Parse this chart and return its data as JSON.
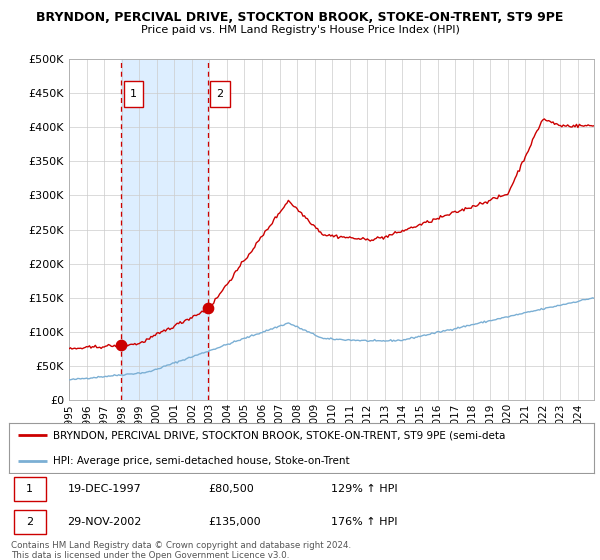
{
  "title_line1": "BRYNDON, PERCIVAL DRIVE, STOCKTON BROOK, STOKE-ON-TRENT, ST9 9PE",
  "title_line2": "Price paid vs. HM Land Registry's House Price Index (HPI)",
  "sale1_date": "19-DEC-1997",
  "sale1_price": 80500,
  "sale1_hpi_pct": "129% ↑ HPI",
  "sale2_date": "29-NOV-2002",
  "sale2_price": 135000,
  "sale2_hpi_pct": "176% ↑ HPI",
  "legend_house": "BRYNDON, PERCIVAL DRIVE, STOCKTON BROOK, STOKE-ON-TRENT, ST9 9PE (semi-deta",
  "legend_hpi": "HPI: Average price, semi-detached house, Stoke-on-Trent",
  "footer": "Contains HM Land Registry data © Crown copyright and database right 2024.\nThis data is licensed under the Open Government Licence v3.0.",
  "house_color": "#cc0000",
  "hpi_color": "#7bafd4",
  "background_color": "#ffffff",
  "highlight_color": "#ddeeff",
  "grid_color": "#cccccc",
  "ylim": [
    0,
    500000
  ],
  "yticks": [
    0,
    50000,
    100000,
    150000,
    200000,
    250000,
    300000,
    350000,
    400000,
    450000,
    500000
  ],
  "sale1_year": 1997.97,
  "sale2_year": 2002.91,
  "noise_seed": 42
}
